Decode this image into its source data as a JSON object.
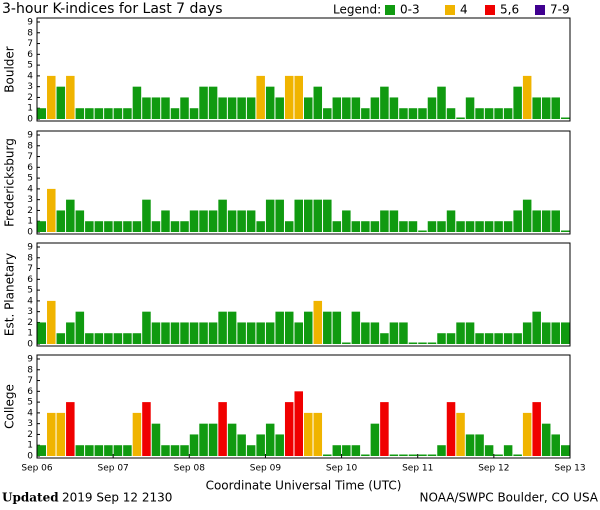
{
  "header": {
    "title": "3-hour K-indices for Last 7 days",
    "legend_label": "Legend:",
    "legend": [
      {
        "name": "0-3",
        "color": "#109a10"
      },
      {
        "name": "4",
        "color": "#f0b400"
      },
      {
        "name": "5,6",
        "color": "#f00000"
      },
      {
        "name": "7-9",
        "color": "#400090"
      }
    ]
  },
  "chart_data": [
    {
      "type": "bar",
      "ylabel": "Boulder",
      "ylim": [
        0,
        9
      ],
      "yticks": [
        0,
        1,
        2,
        3,
        4,
        5,
        6,
        7,
        8,
        9
      ],
      "values": [
        1,
        4,
        3,
        4,
        1,
        1,
        1,
        1,
        1,
        1,
        3,
        2,
        2,
        2,
        1,
        2,
        1,
        3,
        3,
        2,
        2,
        2,
        2,
        4,
        3,
        2,
        4,
        4,
        2,
        3,
        1,
        2,
        2,
        2,
        1,
        2,
        3,
        2,
        1,
        1,
        1,
        2,
        3,
        1,
        0,
        2,
        1,
        1,
        1,
        1,
        3,
        4,
        2,
        2,
        2,
        0
      ]
    },
    {
      "type": "bar",
      "ylabel": "Fredericksburg",
      "ylim": [
        0,
        9
      ],
      "yticks": [
        0,
        1,
        2,
        3,
        4,
        5,
        6,
        7,
        8,
        9
      ],
      "values": [
        1,
        4,
        2,
        3,
        2,
        1,
        1,
        1,
        1,
        1,
        1,
        3,
        1,
        2,
        1,
        1,
        2,
        2,
        2,
        3,
        2,
        2,
        2,
        1,
        3,
        3,
        1,
        3,
        3,
        3,
        3,
        1,
        2,
        1,
        1,
        1,
        2,
        2,
        1,
        1,
        0,
        1,
        1,
        2,
        1,
        1,
        1,
        1,
        1,
        1,
        2,
        3,
        2,
        2,
        2,
        0
      ]
    },
    {
      "type": "bar",
      "ylabel": "Est. Planetary",
      "ylim": [
        0,
        9
      ],
      "yticks": [
        0,
        1,
        2,
        3,
        4,
        5,
        6,
        7,
        8,
        9
      ],
      "values": [
        2,
        4,
        1,
        2,
        3,
        1,
        1,
        1,
        1,
        1,
        1,
        3,
        2,
        2,
        2,
        2,
        2,
        2,
        2,
        3,
        3,
        2,
        2,
        2,
        2,
        3,
        3,
        2,
        3,
        4,
        3,
        3,
        0,
        3,
        2,
        2,
        1,
        2,
        2,
        0,
        0,
        0,
        1,
        1,
        2,
        2,
        1,
        1,
        1,
        1,
        1,
        2,
        3,
        2,
        2,
        2
      ]
    },
    {
      "type": "bar",
      "ylabel": "College",
      "ylim": [
        0,
        9
      ],
      "yticks": [
        0,
        1,
        2,
        3,
        4,
        5,
        6,
        7,
        8,
        9
      ],
      "values": [
        1,
        4,
        4,
        5,
        1,
        1,
        1,
        1,
        1,
        1,
        4,
        5,
        3,
        1,
        1,
        1,
        2,
        3,
        3,
        5,
        3,
        2,
        1,
        2,
        3,
        2,
        5,
        6,
        4,
        4,
        0,
        1,
        1,
        1,
        0,
        3,
        5,
        0,
        0,
        0,
        0,
        0,
        1,
        5,
        4,
        2,
        2,
        1,
        0,
        1,
        0,
        4,
        5,
        3,
        2,
        1
      ],
      "xticks": [
        "Sep 06",
        "Sep 07",
        "Sep 08",
        "Sep 09",
        "Sep 10",
        "Sep 11",
        "Sep 12",
        "Sep 13"
      ],
      "xlabel": "Coordinate Universal Time (UTC)"
    }
  ],
  "footer": {
    "updated_label": "Updated",
    "updated": "2019 Sep 12 2130",
    "source": "NOAA/SWPC Boulder, CO USA"
  }
}
